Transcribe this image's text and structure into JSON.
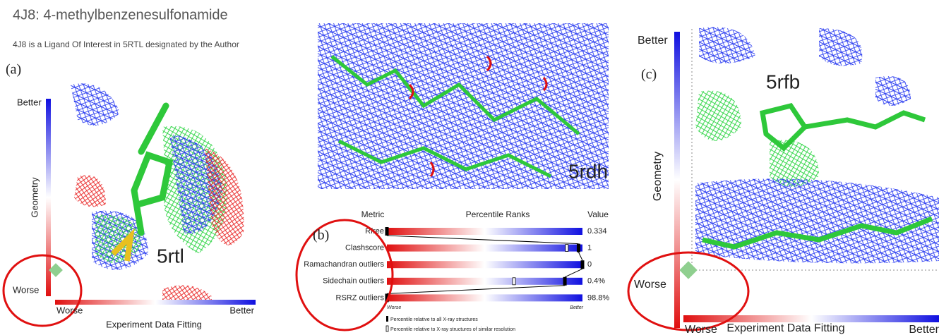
{
  "header": {
    "title": "4J8: 4-methylbenzenesulfonamide",
    "subtitle": "4J8 is a Ligand Of Interest in 5RTL designated by the Author"
  },
  "panel_a": {
    "label": "(a)",
    "structure": "5rtl",
    "y_top": "Better",
    "y_axis": "Geometry",
    "y_bottom": "Worse",
    "x_left": "Worse",
    "x_right": "Better",
    "x_axis": "Experiment Data Fitting"
  },
  "panel_b": {
    "label": "(b)",
    "structure": "5rdh",
    "table": {
      "headers": [
        "Metric",
        "Percentile Ranks",
        "Value"
      ],
      "rows": [
        {
          "metric": "Rfree",
          "value": "0.334",
          "percentile_all": 0,
          "percentile_similar": 0
        },
        {
          "metric": "Clashscore",
          "value": "1",
          "percentile_all": 98,
          "percentile_similar": 92
        },
        {
          "metric": "Ramachandran outliers",
          "value": "0",
          "percentile_all": 100,
          "percentile_similar": 100
        },
        {
          "metric": "Sidechain outliers",
          "value": "0.4%",
          "percentile_all": 91,
          "percentile_similar": 65
        },
        {
          "metric": "RSRZ outliers",
          "value": "98.8%",
          "percentile_all": 0,
          "percentile_similar": 0
        }
      ],
      "scale_left": "Worse",
      "scale_right": "Better",
      "legend": [
        "Percentile relative to all X-ray structures",
        "Percentile relative to X-ray structures of similar resolution"
      ]
    }
  },
  "panel_c": {
    "label": "(c)",
    "structure": "5rfb",
    "y_top": "Better",
    "y_axis": "Geometry",
    "y_bottom": "Worse",
    "x_left": "Worse",
    "x_right": "Better",
    "x_axis": "Experiment Data Fitting"
  }
}
